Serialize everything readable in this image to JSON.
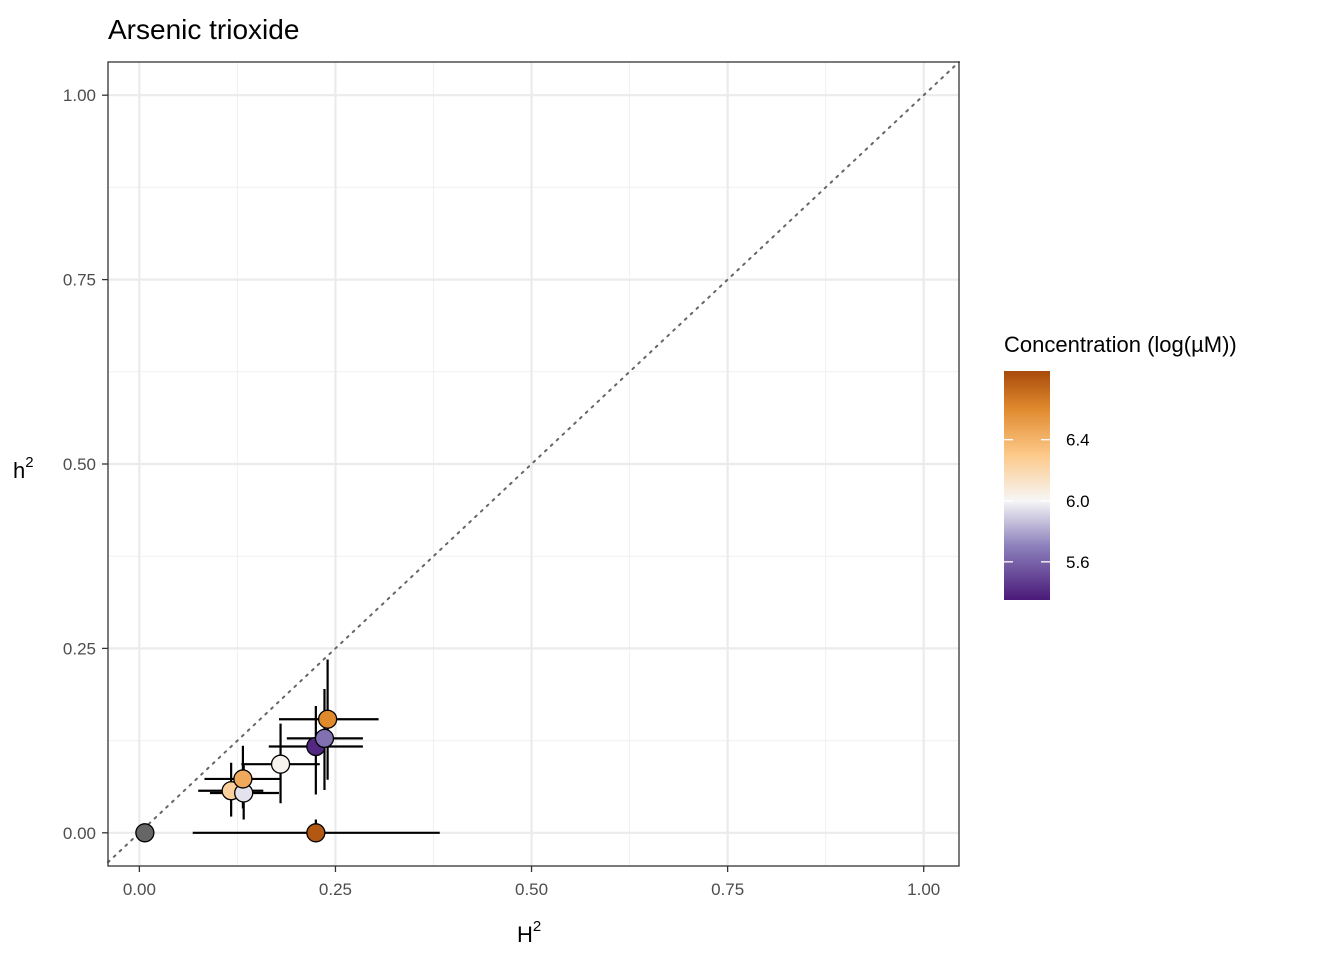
{
  "chart_data": {
    "type": "scatter",
    "title": "Arsenic trioxide",
    "xlabel": {
      "base": "H",
      "sup": "2"
    },
    "ylabel": {
      "base": "h",
      "sup": "2"
    },
    "xlim": [
      -0.04,
      1.045
    ],
    "ylim": [
      -0.045,
      1.045
    ],
    "x_ticks": [
      0.0,
      0.25,
      0.5,
      0.75,
      1.0
    ],
    "x_tick_labels": [
      "0.00",
      "0.25",
      "0.50",
      "0.75",
      "1.00"
    ],
    "y_ticks": [
      0.0,
      0.25,
      0.5,
      0.75,
      1.0
    ],
    "y_tick_labels": [
      "0.00",
      "0.25",
      "0.50",
      "0.75",
      "1.00"
    ],
    "minor_ticks": [
      0.125,
      0.375,
      0.625,
      0.875
    ],
    "grid": true,
    "reference_line": {
      "slope": 1,
      "intercept": 0,
      "style": "dotted",
      "color": "#666666"
    },
    "legend": {
      "title": "Concentration (log(µM))",
      "placement": "right",
      "type": "colorbar",
      "range": [
        5.35,
        6.85
      ],
      "ticks": [
        5.6,
        6.0,
        6.4
      ],
      "tick_labels": [
        "5.6",
        "6.0",
        "6.4"
      ],
      "gradient_stops": [
        {
          "value": 5.35,
          "color": "#4a1a78"
        },
        {
          "value": 5.7,
          "color": "#8b7fbb"
        },
        {
          "value": 6.0,
          "color": "#f6f6f6"
        },
        {
          "value": 6.3,
          "color": "#fdc98a"
        },
        {
          "value": 6.6,
          "color": "#e08a2e"
        },
        {
          "value": 6.85,
          "color": "#a84b0c"
        }
      ]
    },
    "na_color": "#666666",
    "points": [
      {
        "x": 0.007,
        "y": 0.0,
        "concentration": null,
        "x_err": null,
        "y_err": null
      },
      {
        "x": 0.225,
        "y": 0.0,
        "concentration": 6.8,
        "x_err": [
          0.068,
          0.383
        ],
        "y_err": [
          0.0,
          0.018
        ]
      },
      {
        "x": 0.117,
        "y": 0.057,
        "concentration": 6.25,
        "x_err": [
          0.075,
          0.158
        ],
        "y_err": [
          0.022,
          0.095
        ]
      },
      {
        "x": 0.133,
        "y": 0.054,
        "concentration": 5.95,
        "x_err": [
          0.09,
          0.178
        ],
        "y_err": [
          0.018,
          0.092
        ]
      },
      {
        "x": 0.132,
        "y": 0.073,
        "concentration": 6.45,
        "x_err": [
          0.083,
          0.18
        ],
        "y_err": [
          0.033,
          0.118
        ]
      },
      {
        "x": 0.18,
        "y": 0.093,
        "concentration": 6.02,
        "x_err": [
          0.13,
          0.23
        ],
        "y_err": [
          0.04,
          0.148
        ]
      },
      {
        "x": 0.225,
        "y": 0.117,
        "concentration": 5.4,
        "x_err": [
          0.165,
          0.285
        ],
        "y_err": [
          0.052,
          0.172
        ]
      },
      {
        "x": 0.236,
        "y": 0.128,
        "concentration": 5.65,
        "x_err": [
          0.188,
          0.285
        ],
        "y_err": [
          0.058,
          0.195
        ]
      },
      {
        "x": 0.24,
        "y": 0.154,
        "concentration": 6.6,
        "x_err": [
          0.178,
          0.305
        ],
        "y_err": [
          0.072,
          0.235
        ]
      }
    ]
  }
}
